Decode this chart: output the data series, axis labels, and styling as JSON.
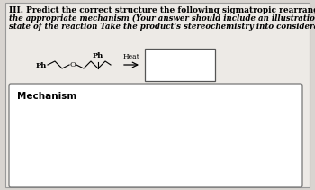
{
  "background_color": "#d8d4d0",
  "page_color": "#edeae6",
  "title_line1": "III. Predict the correct structure the following sigmatropic rearrangement  and detailed",
  "title_line2": "the appropriate mechanism (Your answer should include an illustration of the transition",
  "title_line3": "state of the reaction Take the product's stereochemistry into consideration).",
  "heat_label": "Heat",
  "mechanism_label": "Mechanism",
  "ph_left": "Ph",
  "ph_top": "Ph",
  "o_label": "O",
  "font_size_title": 6.5,
  "font_size_italic": 6.2,
  "font_size_mechanism": 7.5
}
